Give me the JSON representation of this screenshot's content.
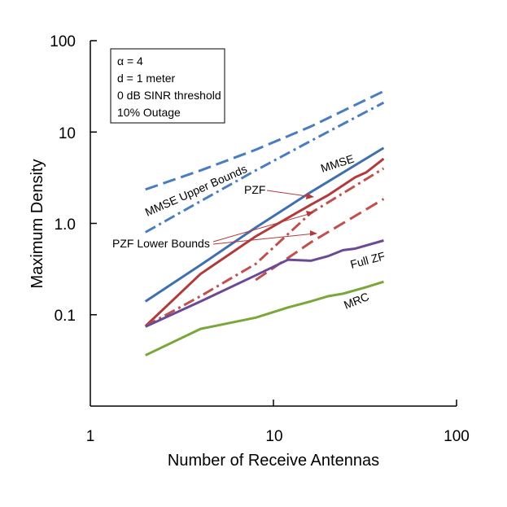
{
  "chart_data": {
    "type": "line",
    "title": "",
    "xlabel": "Number of Receive Antennas",
    "ylabel": "Maximum Density",
    "xscale": "log",
    "yscale": "log",
    "xlim": [
      1,
      100
    ],
    "ylim": [
      0.01,
      100
    ],
    "x_ticks": [
      "1",
      "10",
      "100"
    ],
    "y_ticks": [
      "0.1",
      "1.0",
      "10",
      "100"
    ],
    "grid": false,
    "info_box": [
      "α = 4",
      "d = 1 meter",
      "0 dB SINR threshold",
      "10% Outage"
    ],
    "info_box_position": "top-left",
    "annotations": [
      {
        "text": "MMSE",
        "target": "MMSE",
        "arrow": false
      },
      {
        "text": "MMSE Upper Bounds",
        "target": "MMSE Upper Bounds",
        "arrow": false
      },
      {
        "text": "PZF",
        "target": "PZF",
        "arrow": true
      },
      {
        "text": "PZF Lower Bounds",
        "target": "PZF Lower Bounds",
        "arrow": true
      },
      {
        "text": "Full ZF",
        "target": "Full ZF",
        "arrow": false
      },
      {
        "text": "MRC",
        "target": "MRC",
        "arrow": false
      }
    ],
    "series": [
      {
        "name": "MMSE",
        "color": "#3f6fb0",
        "dash": "solid",
        "x": [
          2,
          4,
          8,
          16,
          40
        ],
        "y": [
          0.14,
          0.35,
          0.9,
          2.2,
          6.7
        ]
      },
      {
        "name": "MMSE Upper Bounds",
        "color": "#4a7cc0",
        "dash": "dash",
        "x": [
          2,
          4,
          8,
          16,
          40
        ],
        "y": [
          2.35,
          3.8,
          6.4,
          11.5,
          28
        ]
      },
      {
        "name": "MMSE Upper Bounds",
        "color": "#4a7cc0",
        "dash": "dashdot",
        "x": [
          2,
          4,
          8,
          16,
          40
        ],
        "y": [
          0.8,
          1.75,
          3.8,
          8.0,
          21
        ]
      },
      {
        "name": "PZF",
        "color": "#b23a3a",
        "dash": "solid",
        "x": [
          2,
          4,
          8,
          12,
          16,
          20,
          28,
          32,
          40
        ],
        "y": [
          0.075,
          0.28,
          0.72,
          1.15,
          1.6,
          2.05,
          3.2,
          3.6,
          5.1
        ]
      },
      {
        "name": "PZF Lower Bounds",
        "color": "#c0504d",
        "dash": "dashdot",
        "x": [
          2,
          4,
          8,
          16,
          40
        ],
        "y": [
          0.075,
          0.16,
          0.36,
          1.3,
          4.0
        ]
      },
      {
        "name": "PZF Lower Bounds",
        "color": "#c0504d",
        "dash": "dash",
        "x": [
          8,
          16,
          40
        ],
        "y": [
          0.24,
          0.62,
          1.85
        ]
      },
      {
        "name": "Full ZF",
        "color": "#6a4a98",
        "dash": "solid",
        "x": [
          2,
          4,
          8,
          12,
          16,
          20,
          24,
          28,
          40
        ],
        "y": [
          0.074,
          0.14,
          0.27,
          0.4,
          0.39,
          0.44,
          0.51,
          0.53,
          0.65
        ]
      },
      {
        "name": "MRC",
        "color": "#7aa63a",
        "dash": "solid",
        "x": [
          2,
          4,
          8,
          12,
          16,
          20,
          24,
          32,
          40
        ],
        "y": [
          0.036,
          0.07,
          0.093,
          0.12,
          0.14,
          0.16,
          0.17,
          0.2,
          0.23
        ]
      }
    ]
  }
}
